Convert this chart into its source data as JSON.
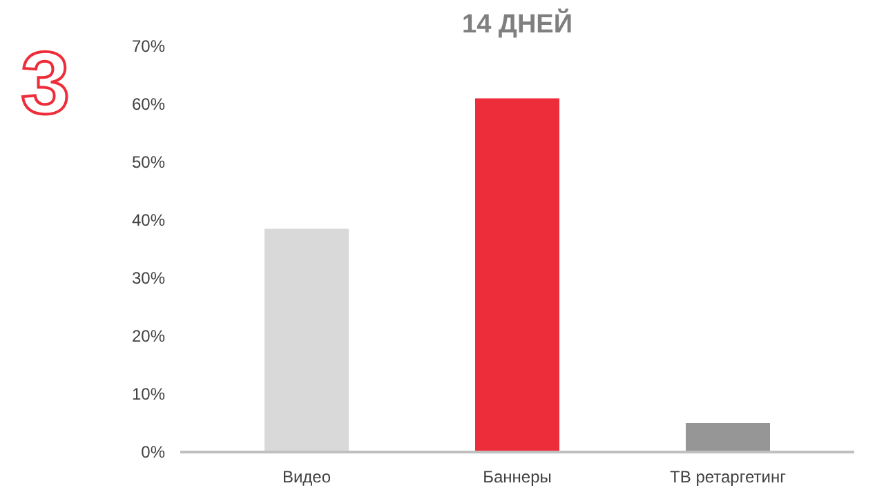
{
  "chart_data": {
    "type": "bar",
    "title": "14 ДНЕЙ",
    "categories": [
      "Видео",
      "Баннеры",
      "ТВ ретаргетинг"
    ],
    "values": [
      38.5,
      61,
      5
    ],
    "colors": [
      "#d9d9d9",
      "#ee2d3a",
      "#969696"
    ],
    "ylim": [
      0,
      70
    ],
    "yticks": [
      {
        "value": 0,
        "label": "0%"
      },
      {
        "value": 10,
        "label": "10%"
      },
      {
        "value": 20,
        "label": "20%"
      },
      {
        "value": 30,
        "label": "30%"
      },
      {
        "value": 40,
        "label": "40%"
      },
      {
        "value": 50,
        "label": "50%"
      },
      {
        "value": 60,
        "label": "60%"
      },
      {
        "value": 70,
        "label": "70%"
      }
    ],
    "grid": false,
    "annotations": [
      "3"
    ]
  }
}
